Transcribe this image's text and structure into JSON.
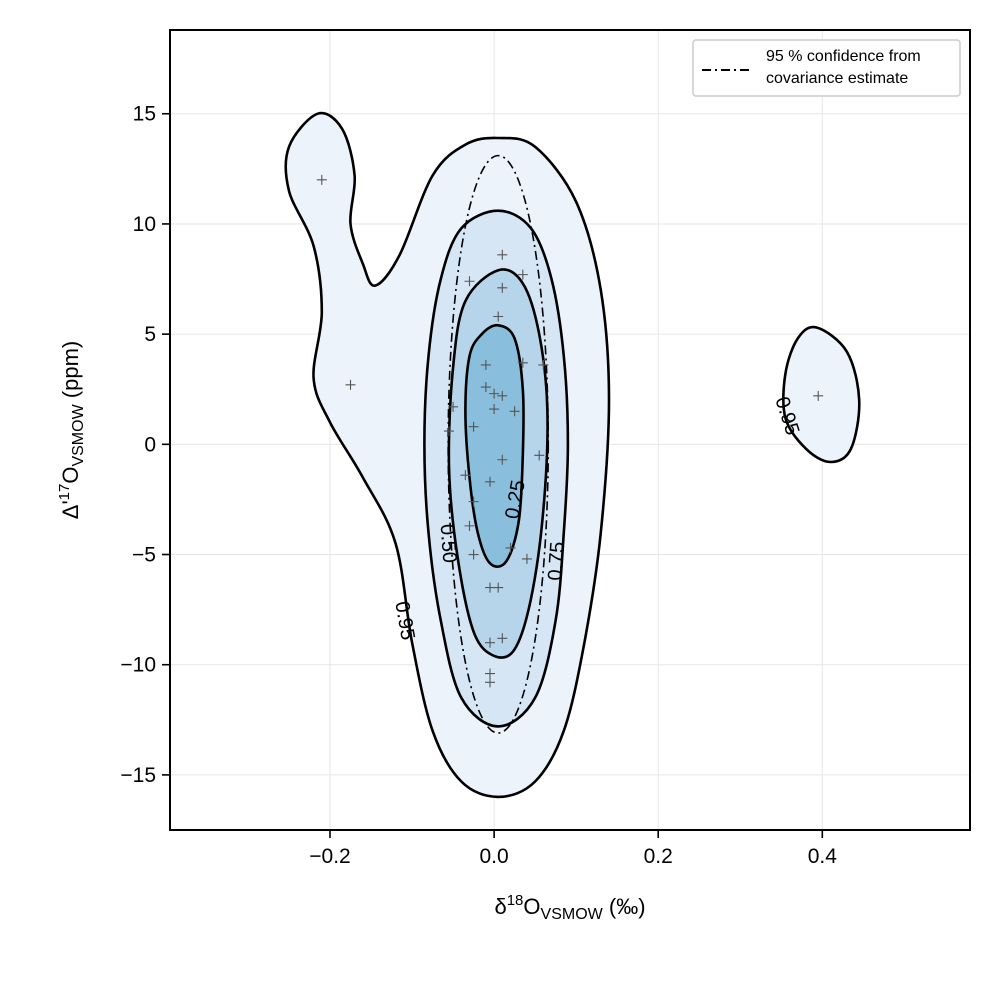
{
  "chart_data": {
    "type": "contour",
    "xlabel": {
      "base": "δ",
      "sup": "18",
      "main": "O",
      "sub": "VSMOW",
      "unit": " (‰)"
    },
    "ylabel": {
      "base": "Δ'",
      "sup": "17",
      "main": "O",
      "sub": "VSMOW",
      "unit": " (ppm)"
    },
    "xlim": [
      -0.395,
      0.58
    ],
    "ylim": [
      -17.5,
      18.8
    ],
    "x_ticks": [
      {
        "value": -0.2,
        "label": "−0.2"
      },
      {
        "value": 0.0,
        "label": "0.0"
      },
      {
        "value": 0.2,
        "label": "0.2"
      },
      {
        "value": 0.4,
        "label": "0.4"
      }
    ],
    "y_ticks": [
      {
        "value": 15,
        "label": "15"
      },
      {
        "value": 10,
        "label": "10"
      },
      {
        "value": 5,
        "label": "5"
      },
      {
        "value": 0,
        "label": "0"
      },
      {
        "value": -5,
        "label": "−5"
      },
      {
        "value": -10,
        "label": "−10"
      },
      {
        "value": -15,
        "label": "−15"
      }
    ],
    "grid": true,
    "legend": {
      "placement": "top-right",
      "entries": [
        {
          "label_lines": [
            "95 % confidence from",
            "covariance estimate"
          ],
          "style": "dash-dot"
        }
      ]
    },
    "contour_levels": [
      {
        "level": 0.95,
        "label": "0.95",
        "fill": "#edf3fb"
      },
      {
        "level": 0.75,
        "label": "0.75",
        "fill": "#d6e6f4"
      },
      {
        "level": 0.5,
        "label": "0.50",
        "fill": "#b6d4ea"
      },
      {
        "level": 0.25,
        "label": "0.25",
        "fill": "#89bedc"
      }
    ],
    "contours": [
      {
        "level": 0.95,
        "fill": "#edf3fb",
        "points": [
          [
            -0.215,
            15.0
          ],
          [
            -0.185,
            14.3
          ],
          [
            -0.17,
            12.2
          ],
          [
            -0.175,
            10.0
          ],
          [
            -0.16,
            8.2
          ],
          [
            -0.145,
            7.2
          ],
          [
            -0.115,
            8.6
          ],
          [
            -0.075,
            12.2
          ],
          [
            -0.035,
            13.6
          ],
          [
            0.005,
            13.9
          ],
          [
            0.05,
            13.5
          ],
          [
            0.1,
            11.0
          ],
          [
            0.13,
            7.0
          ],
          [
            0.14,
            2.0
          ],
          [
            0.13,
            -4.0
          ],
          [
            0.11,
            -9.0
          ],
          [
            0.085,
            -13.0
          ],
          [
            0.05,
            -15.3
          ],
          [
            0.005,
            -16.0
          ],
          [
            -0.04,
            -15.3
          ],
          [
            -0.075,
            -13.0
          ],
          [
            -0.1,
            -9.0
          ],
          [
            -0.12,
            -4.5
          ],
          [
            -0.16,
            -1.5
          ],
          [
            -0.2,
            1.0
          ],
          [
            -0.22,
            3.0
          ],
          [
            -0.21,
            6.0
          ],
          [
            -0.22,
            9.0
          ],
          [
            -0.25,
            11.5
          ],
          [
            -0.25,
            13.5
          ]
        ]
      },
      {
        "level": 0.95,
        "fill": "#edf3fb",
        "points": [
          [
            0.393,
            5.3
          ],
          [
            0.43,
            4.2
          ],
          [
            0.445,
            2.0
          ],
          [
            0.435,
            -0.2
          ],
          [
            0.41,
            -0.8
          ],
          [
            0.38,
            -0.2
          ],
          [
            0.355,
            1.2
          ],
          [
            0.355,
            3.2
          ],
          [
            0.37,
            4.8
          ]
        ]
      },
      {
        "level": 0.75,
        "fill": "#d6e6f4",
        "points": [
          [
            0.005,
            10.6
          ],
          [
            0.045,
            9.8
          ],
          [
            0.07,
            7.5
          ],
          [
            0.085,
            4.0
          ],
          [
            0.09,
            0.0
          ],
          [
            0.085,
            -4.0
          ],
          [
            0.075,
            -8.0
          ],
          [
            0.05,
            -11.5
          ],
          [
            0.005,
            -12.8
          ],
          [
            -0.04,
            -11.5
          ],
          [
            -0.065,
            -8.0
          ],
          [
            -0.08,
            -4.0
          ],
          [
            -0.085,
            0.0
          ],
          [
            -0.08,
            4.0
          ],
          [
            -0.065,
            7.5
          ],
          [
            -0.04,
            9.8
          ]
        ]
      },
      {
        "level": 0.5,
        "fill": "#b6d4ea",
        "points": [
          [
            0.005,
            7.9
          ],
          [
            0.035,
            7.3
          ],
          [
            0.055,
            5.0
          ],
          [
            0.065,
            1.5
          ],
          [
            0.06,
            -3.0
          ],
          [
            0.045,
            -7.0
          ],
          [
            0.025,
            -9.3
          ],
          [
            0.0,
            -9.6
          ],
          [
            -0.025,
            -8.5
          ],
          [
            -0.045,
            -5.0
          ],
          [
            -0.055,
            -1.0
          ],
          [
            -0.05,
            3.5
          ],
          [
            -0.035,
            6.5
          ]
        ]
      },
      {
        "level": 0.25,
        "fill": "#89bedc",
        "points": [
          [
            0.005,
            5.4
          ],
          [
            0.025,
            4.8
          ],
          [
            0.035,
            2.5
          ],
          [
            0.035,
            -0.5
          ],
          [
            0.03,
            -3.5
          ],
          [
            0.015,
            -5.3
          ],
          [
            -0.005,
            -5.4
          ],
          [
            -0.02,
            -4.0
          ],
          [
            -0.03,
            -1.5
          ],
          [
            -0.035,
            1.5
          ],
          [
            -0.03,
            4.0
          ],
          [
            -0.015,
            5.0
          ]
        ]
      }
    ],
    "contour_label_positions": [
      {
        "text": "0.95",
        "x": -0.108,
        "y": -8.0,
        "angle": 80
      },
      {
        "text": "0.75",
        "x": 0.075,
        "y": -5.3,
        "angle": -86
      },
      {
        "text": "0.50",
        "x": -0.055,
        "y": -4.5,
        "angle": 86
      },
      {
        "text": "0.25",
        "x": 0.025,
        "y": -2.5,
        "angle": -80
      },
      {
        "text": "0.95",
        "x": 0.358,
        "y": 1.3,
        "angle": 72
      }
    ],
    "confidence_ellipse": {
      "center_x": 0.005,
      "center_y": 0.0,
      "radius_x": 0.061,
      "radius_y": 13.1,
      "rotation_deg": 0
    },
    "scatter_points": [
      [
        -0.21,
        12.0
      ],
      [
        -0.175,
        2.7
      ],
      [
        0.01,
        8.6
      ],
      [
        0.035,
        7.7
      ],
      [
        0.01,
        7.1
      ],
      [
        -0.03,
        7.4
      ],
      [
        0.005,
        5.8
      ],
      [
        -0.01,
        3.6
      ],
      [
        0.035,
        3.7
      ],
      [
        0.06,
        3.6
      ],
      [
        -0.01,
        2.6
      ],
      [
        0.0,
        2.3
      ],
      [
        0.01,
        2.2
      ],
      [
        0.0,
        1.6
      ],
      [
        0.025,
        1.5
      ],
      [
        -0.05,
        1.7
      ],
      [
        -0.055,
        0.6
      ],
      [
        -0.025,
        0.8
      ],
      [
        0.01,
        -0.7
      ],
      [
        0.055,
        -0.5
      ],
      [
        -0.005,
        -1.7
      ],
      [
        -0.035,
        -1.4
      ],
      [
        -0.025,
        -2.6
      ],
      [
        -0.03,
        -3.7
      ],
      [
        0.02,
        -4.7
      ],
      [
        -0.025,
        -5.0
      ],
      [
        0.04,
        -5.2
      ],
      [
        -0.005,
        -6.5
      ],
      [
        0.005,
        -6.5
      ],
      [
        0.01,
        -8.8
      ],
      [
        -0.005,
        -9.0
      ],
      [
        -0.005,
        -10.4
      ],
      [
        -0.005,
        -10.8
      ],
      [
        0.395,
        2.2
      ]
    ]
  }
}
